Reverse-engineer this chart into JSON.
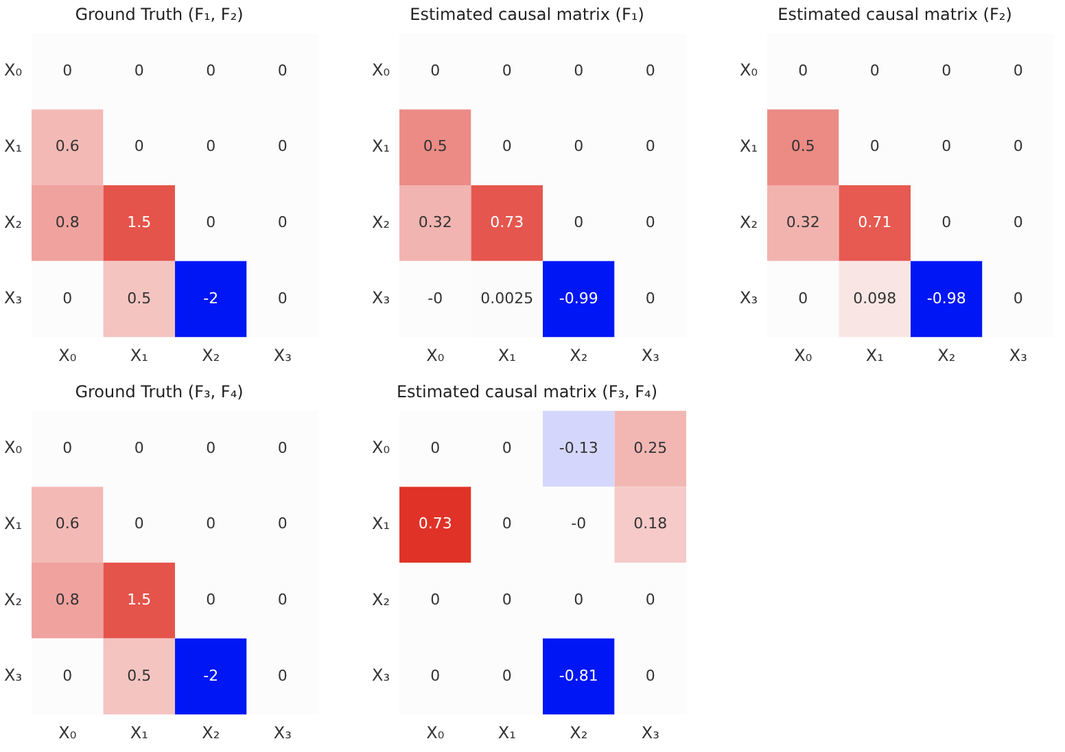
{
  "chart_data": [
    {
      "type": "heatmap",
      "title": "Ground Truth (F₁, F₂)",
      "categories": [
        "X₀",
        "X₁",
        "X₂",
        "X₃"
      ],
      "y_categories": [
        "X₀",
        "X₁",
        "X₂",
        "X₃"
      ],
      "cells": [
        [
          0,
          0,
          0,
          0
        ],
        [
          0.6,
          0,
          0,
          0
        ],
        [
          0.8,
          1.5,
          0,
          0
        ],
        [
          0,
          0.5,
          -2,
          0
        ]
      ],
      "data_labels": true
    },
    {
      "type": "heatmap",
      "title": "Estimated causal matrix (F₁)",
      "categories": [
        "X₀",
        "X₁",
        "X₂",
        "X₃"
      ],
      "y_categories": [
        "X₀",
        "X₁",
        "X₂",
        "X₃"
      ],
      "cells": [
        [
          0,
          0,
          0,
          0
        ],
        [
          0.5,
          0,
          0,
          0
        ],
        [
          0.32,
          0.73,
          0,
          0
        ],
        [
          0,
          0.0025,
          -0.99,
          0
        ]
      ],
      "cell_labels": [
        [
          "0",
          "0",
          "0",
          "0"
        ],
        [
          "0.5",
          "0",
          "0",
          "0"
        ],
        [
          "0.32",
          "0.73",
          "0",
          "0"
        ],
        [
          "-0",
          "0.0025",
          "-0.99",
          "0"
        ]
      ]
    },
    {
      "type": "heatmap",
      "title": "Estimated causal matrix (F₂)",
      "categories": [
        "X₀",
        "X₁",
        "X₂",
        "X₃"
      ],
      "y_categories": [
        "X₀",
        "X₁",
        "X₂",
        "X₃"
      ],
      "cells": [
        [
          0,
          0,
          0,
          0
        ],
        [
          0.5,
          0,
          0,
          0
        ],
        [
          0.32,
          0.71,
          0,
          0
        ],
        [
          0,
          0.098,
          -0.98,
          0
        ]
      ],
      "data_labels": true
    },
    {
      "type": "heatmap",
      "title": "Ground Truth (F₃, F₄)",
      "categories": [
        "X₀",
        "X₁",
        "X₂",
        "X₃"
      ],
      "y_categories": [
        "X₀",
        "X₁",
        "X₂",
        "X₃"
      ],
      "cells": [
        [
          0,
          0,
          0,
          0
        ],
        [
          0.6,
          0,
          0,
          0
        ],
        [
          0.8,
          1.5,
          0,
          0
        ],
        [
          0,
          0.5,
          -2,
          0
        ]
      ],
      "data_labels": true
    },
    {
      "type": "heatmap",
      "title": "Estimated causal matrix (F₃, F₄)",
      "categories": [
        "X₀",
        "X₁",
        "X₂",
        "X₃"
      ],
      "y_categories": [
        "X₀",
        "X₁",
        "X₂",
        "X₃"
      ],
      "cells": [
        [
          0,
          0,
          -0.13,
          0.25
        ],
        [
          0.73,
          0,
          0,
          0.18
        ],
        [
          0,
          0,
          0,
          0
        ],
        [
          0,
          0,
          -0.81,
          0
        ]
      ],
      "cell_labels": [
        [
          "0",
          "0",
          "-0.13",
          "0.25"
        ],
        [
          "0.73",
          "0",
          "-0",
          "0.18"
        ],
        [
          "0",
          "0",
          "0",
          "0"
        ],
        [
          "0",
          "0",
          "-0.81",
          "0"
        ]
      ]
    }
  ]
}
